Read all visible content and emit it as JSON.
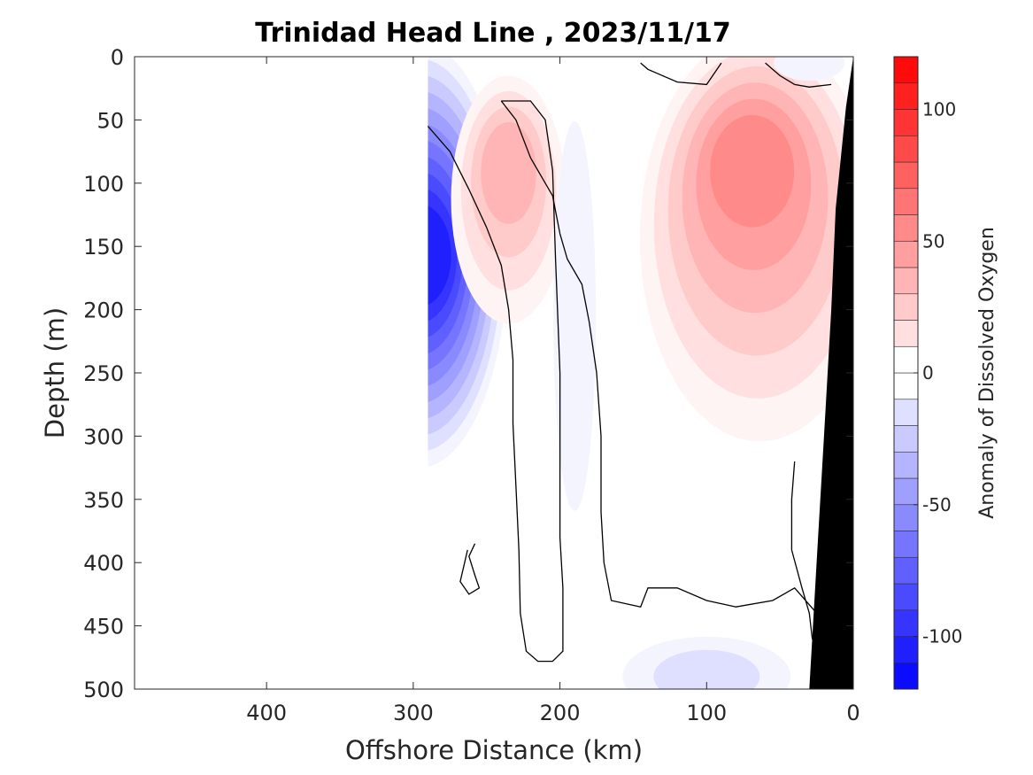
{
  "chart_data": {
    "type": "heatmap",
    "title": "Trinidad Head Line , 2023/11/17",
    "xlabel": "Offshore Distance (km)",
    "ylabel": "Depth (m)",
    "xlim": [
      0,
      490
    ],
    "x_reversed": true,
    "ylim": [
      0,
      500
    ],
    "y_reversed": true,
    "x_ticks": [
      400,
      300,
      200,
      100,
      0
    ],
    "y_ticks": [
      0,
      50,
      100,
      150,
      200,
      250,
      300,
      350,
      400,
      450,
      500
    ],
    "colorbar": {
      "label": "Anomaly of Dissolved Oxygen",
      "range": [
        -120,
        120
      ],
      "step": 10,
      "ticks": [
        100,
        50,
        0,
        -50,
        -100
      ],
      "colors": {
        "negative_extreme": "#0000ff",
        "neutral": "#ffffff",
        "positive_extreme": "#ff0000"
      }
    },
    "data_extent_km": [
      0,
      290
    ],
    "anomaly_features": [
      {
        "name": "offshore deep low",
        "distance_km": 285,
        "depth_m": 150,
        "value": -110
      },
      {
        "name": "offshore subsurface high",
        "distance_km": 235,
        "depth_m": 85,
        "value": 45
      },
      {
        "name": "central narrow low",
        "distance_km": 190,
        "depth_m": 100,
        "value": -15
      },
      {
        "name": "nearshore subsurface high",
        "distance_km": 70,
        "depth_m": 80,
        "value": 60
      },
      {
        "name": "surface low",
        "distance_km": 30,
        "depth_m": 5,
        "value": -15
      },
      {
        "name": "deep low near bottom",
        "distance_km": 100,
        "depth_m": 490,
        "value": -20
      }
    ],
    "bathymetry": "filled black (seafloor)"
  }
}
